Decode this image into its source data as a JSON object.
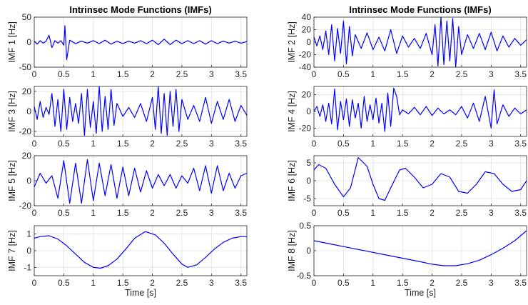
{
  "chart_data": {
    "type": "line",
    "x_range": [
      0,
      3.6
    ],
    "x_ticks": [
      0,
      0.5,
      1,
      1.5,
      2,
      2.5,
      3,
      3.5
    ],
    "x_tick_labels": [
      "0",
      "0.5",
      "1",
      "1.5",
      "2",
      "2.5",
      "3",
      "3.5"
    ],
    "grid": true,
    "line_color": "#0000ff",
    "panels": [
      {
        "id": "imf1",
        "title": "Intrinsec Mode Functions (IMFs)",
        "ylabel": "IMF 1 [Hz]",
        "xlabel": "",
        "ylim": [
          -50,
          50
        ],
        "yticks": [
          -50,
          0,
          50
        ],
        "ytick_labels": [
          "-50",
          "0",
          "50"
        ],
        "x": [
          0.0,
          0.05,
          0.1,
          0.15,
          0.2,
          0.25,
          0.3,
          0.35,
          0.4,
          0.45,
          0.5,
          0.52,
          0.55,
          0.6,
          0.7,
          0.8,
          0.9,
          1.0,
          1.1,
          1.2,
          1.3,
          1.4,
          1.5,
          1.6,
          1.7,
          1.8,
          1.9,
          2.0,
          2.1,
          2.2,
          2.3,
          2.4,
          2.5,
          2.6,
          2.7,
          2.8,
          2.9,
          3.0,
          3.1,
          3.2,
          3.3,
          3.4,
          3.5,
          3.6
        ],
        "y": [
          2,
          -4,
          3,
          -2,
          2,
          14,
          -11,
          3,
          -2,
          3,
          -6,
          33,
          -35,
          4,
          -3,
          2,
          -2,
          3,
          -3,
          4,
          -4,
          2,
          -3,
          2,
          -2,
          3,
          -3,
          4,
          -5,
          6,
          -5,
          4,
          -3,
          3,
          -3,
          3,
          -4,
          3,
          -3,
          2,
          -2,
          2,
          -2,
          1
        ]
      },
      {
        "id": "imf2",
        "title": "Intrinsec Mode Functions (IMFs)",
        "ylabel": "IMF 2 [Hz]",
        "xlabel": "",
        "ylim": [
          -40,
          40
        ],
        "yticks": [
          -40,
          -20,
          0,
          20,
          40
        ],
        "ytick_labels": [
          "-40",
          "-20",
          "0",
          "20",
          "40"
        ],
        "x": [
          0.0,
          0.05,
          0.1,
          0.15,
          0.2,
          0.25,
          0.3,
          0.35,
          0.4,
          0.45,
          0.5,
          0.55,
          0.6,
          0.65,
          0.7,
          0.8,
          0.9,
          1.0,
          1.1,
          1.2,
          1.3,
          1.4,
          1.5,
          1.6,
          1.7,
          1.8,
          1.9,
          2.0,
          2.05,
          2.1,
          2.15,
          2.2,
          2.25,
          2.3,
          2.35,
          2.4,
          2.45,
          2.5,
          2.6,
          2.7,
          2.8,
          2.9,
          3.0,
          3.1,
          3.2,
          3.3,
          3.4,
          3.5,
          3.6
        ],
        "y": [
          8,
          -6,
          10,
          -12,
          18,
          -20,
          28,
          -30,
          22,
          -18,
          34,
          -35,
          25,
          -22,
          12,
          -10,
          15,
          -12,
          8,
          -14,
          20,
          -18,
          10,
          -8,
          6,
          -10,
          14,
          -20,
          28,
          -38,
          40,
          -36,
          34,
          -30,
          38,
          -40,
          25,
          -20,
          12,
          -10,
          14,
          -12,
          16,
          -14,
          10,
          -8,
          6,
          -5,
          4
        ]
      },
      {
        "id": "imf3",
        "title": "",
        "ylabel": "IMF 3 [Hz]",
        "xlabel": "",
        "ylim": [
          -25,
          25
        ],
        "yticks": [
          -20,
          0,
          20
        ],
        "ytick_labels": [
          "-20",
          "0",
          "20"
        ],
        "x": [
          0.0,
          0.05,
          0.1,
          0.15,
          0.2,
          0.25,
          0.3,
          0.35,
          0.4,
          0.45,
          0.5,
          0.55,
          0.6,
          0.65,
          0.7,
          0.75,
          0.8,
          0.85,
          0.9,
          0.95,
          1.0,
          1.05,
          1.1,
          1.15,
          1.2,
          1.25,
          1.3,
          1.35,
          1.4,
          1.5,
          1.6,
          1.7,
          1.8,
          1.9,
          2.0,
          2.05,
          2.1,
          2.15,
          2.2,
          2.25,
          2.3,
          2.35,
          2.4,
          2.45,
          2.5,
          2.6,
          2.7,
          2.8,
          2.9,
          3.0,
          3.1,
          3.2,
          3.3,
          3.4,
          3.5,
          3.6
        ],
        "y": [
          5,
          -8,
          10,
          -6,
          4,
          -3,
          18,
          -15,
          12,
          -20,
          22,
          -18,
          14,
          -10,
          8,
          -12,
          18,
          -24,
          22,
          -16,
          10,
          -22,
          25,
          -20,
          15,
          -18,
          22,
          -14,
          8,
          -5,
          4,
          -6,
          8,
          -10,
          14,
          -18,
          25,
          -22,
          18,
          -24,
          20,
          -15,
          22,
          -20,
          12,
          -8,
          6,
          -10,
          14,
          -12,
          10,
          -8,
          12,
          -10,
          6,
          -4
        ]
      },
      {
        "id": "imf4",
        "title": "",
        "ylabel": "IMF 4 [Hz]",
        "xlabel": "",
        "ylim": [
          -30,
          30
        ],
        "yticks": [
          -20,
          0,
          20
        ],
        "ytick_labels": [
          "-20",
          "0",
          "20"
        ],
        "x": [
          0.0,
          0.05,
          0.1,
          0.15,
          0.2,
          0.25,
          0.3,
          0.35,
          0.4,
          0.45,
          0.5,
          0.55,
          0.6,
          0.65,
          0.7,
          0.75,
          0.8,
          0.85,
          0.9,
          0.95,
          1.0,
          1.05,
          1.1,
          1.15,
          1.2,
          1.25,
          1.3,
          1.35,
          1.4,
          1.45,
          1.5,
          1.6,
          1.7,
          1.8,
          1.9,
          2.0,
          2.1,
          2.2,
          2.3,
          2.4,
          2.5,
          2.6,
          2.7,
          2.8,
          2.9,
          3.0,
          3.05,
          3.1,
          3.2,
          3.3,
          3.4,
          3.5,
          3.6
        ],
        "y": [
          0,
          6,
          -6,
          8,
          -12,
          10,
          -15,
          27,
          -22,
          12,
          -10,
          15,
          -18,
          14,
          -8,
          10,
          -20,
          18,
          -12,
          8,
          -10,
          16,
          -14,
          10,
          -24,
          22,
          -18,
          28,
          18,
          -4,
          2,
          -3,
          5,
          -4,
          6,
          -5,
          4,
          -3,
          2,
          -4,
          6,
          -8,
          10,
          -12,
          18,
          -20,
          26,
          -15,
          8,
          -6,
          4,
          -3,
          2
        ]
      },
      {
        "id": "imf5",
        "title": "",
        "ylabel": "IMF 5 [Hz]",
        "xlabel": "",
        "ylim": [
          -20,
          20
        ],
        "yticks": [
          -20,
          0,
          20
        ],
        "ytick_labels": [
          "-20",
          "0",
          "20"
        ],
        "x": [
          0.0,
          0.1,
          0.2,
          0.3,
          0.4,
          0.5,
          0.6,
          0.7,
          0.8,
          0.9,
          1.0,
          1.1,
          1.2,
          1.3,
          1.4,
          1.5,
          1.6,
          1.7,
          1.8,
          1.9,
          2.0,
          2.1,
          2.2,
          2.3,
          2.4,
          2.5,
          2.6,
          2.7,
          2.8,
          2.9,
          3.0,
          3.1,
          3.2,
          3.3,
          3.4,
          3.5,
          3.6
        ],
        "y": [
          -5,
          6,
          -2,
          4,
          -14,
          16,
          -18,
          14,
          -18,
          17,
          -16,
          14,
          -12,
          13,
          -14,
          11,
          -12,
          10,
          -9,
          8,
          -6,
          5,
          -4,
          5,
          -6,
          4,
          -2,
          10,
          -8,
          12,
          -10,
          12,
          -8,
          6,
          -6,
          4,
          6
        ]
      },
      {
        "id": "imf6",
        "title": "",
        "ylabel": "IMF 6 [Hz]",
        "xlabel": "",
        "ylim": [
          -7,
          7
        ],
        "yticks": [
          -5,
          0,
          5
        ],
        "ytick_labels": [
          "-5",
          "0",
          "5"
        ],
        "x": [
          0.0,
          0.08,
          0.2,
          0.35,
          0.5,
          0.62,
          0.75,
          0.9,
          1.0,
          1.1,
          1.2,
          1.3,
          1.45,
          1.55,
          1.7,
          1.85,
          2.0,
          2.15,
          2.3,
          2.45,
          2.6,
          2.75,
          2.9,
          3.05,
          3.2,
          3.35,
          3.5,
          3.6
        ],
        "y": [
          3,
          4.5,
          3.5,
          -1,
          -4.5,
          -2,
          6.5,
          4,
          -1,
          -5,
          -5.5,
          -2,
          3,
          3.5,
          1,
          -2,
          -1,
          2,
          1,
          -3,
          -3.5,
          -1,
          2.5,
          2,
          -1,
          -3,
          -2.5,
          0
        ]
      },
      {
        "id": "imf7",
        "title": "",
        "ylabel": "IMF 7 [Hz]",
        "xlabel": "Time [s]",
        "ylim": [
          -1.5,
          1.5
        ],
        "yticks": [
          -1,
          0,
          1
        ],
        "ytick_labels": [
          "-1",
          "0",
          "1"
        ],
        "x": [
          0.0,
          0.1,
          0.25,
          0.4,
          0.55,
          0.7,
          0.85,
          1.0,
          1.12,
          1.25,
          1.4,
          1.55,
          1.7,
          1.88,
          2.05,
          2.2,
          2.35,
          2.5,
          2.6,
          2.75,
          2.9,
          3.05,
          3.2,
          3.35,
          3.5,
          3.6
        ],
        "y": [
          0.75,
          0.85,
          0.9,
          0.7,
          0.3,
          -0.2,
          -0.7,
          -1.0,
          -1.05,
          -0.9,
          -0.5,
          0.1,
          0.75,
          1.15,
          0.95,
          0.45,
          -0.2,
          -0.8,
          -1.0,
          -0.85,
          -0.4,
          0.1,
          0.5,
          0.75,
          0.85,
          0.85
        ]
      },
      {
        "id": "imf8",
        "title": "",
        "ylabel": "IMF 8 [Hz]",
        "xlabel": "Time [s]",
        "ylim": [
          -0.5,
          0.5
        ],
        "yticks": [
          -0.5,
          0,
          0.5
        ],
        "ytick_labels": [
          "-0.5",
          "0",
          "0.5"
        ],
        "x": [
          0.0,
          0.3,
          0.6,
          0.9,
          1.2,
          1.5,
          1.8,
          2.0,
          2.2,
          2.4,
          2.6,
          2.8,
          3.0,
          3.2,
          3.4,
          3.6
        ],
        "y": [
          0.2,
          0.13,
          0.06,
          -0.01,
          -0.08,
          -0.15,
          -0.22,
          -0.27,
          -0.3,
          -0.3,
          -0.26,
          -0.19,
          -0.08,
          0.05,
          0.2,
          0.4
        ]
      }
    ]
  }
}
